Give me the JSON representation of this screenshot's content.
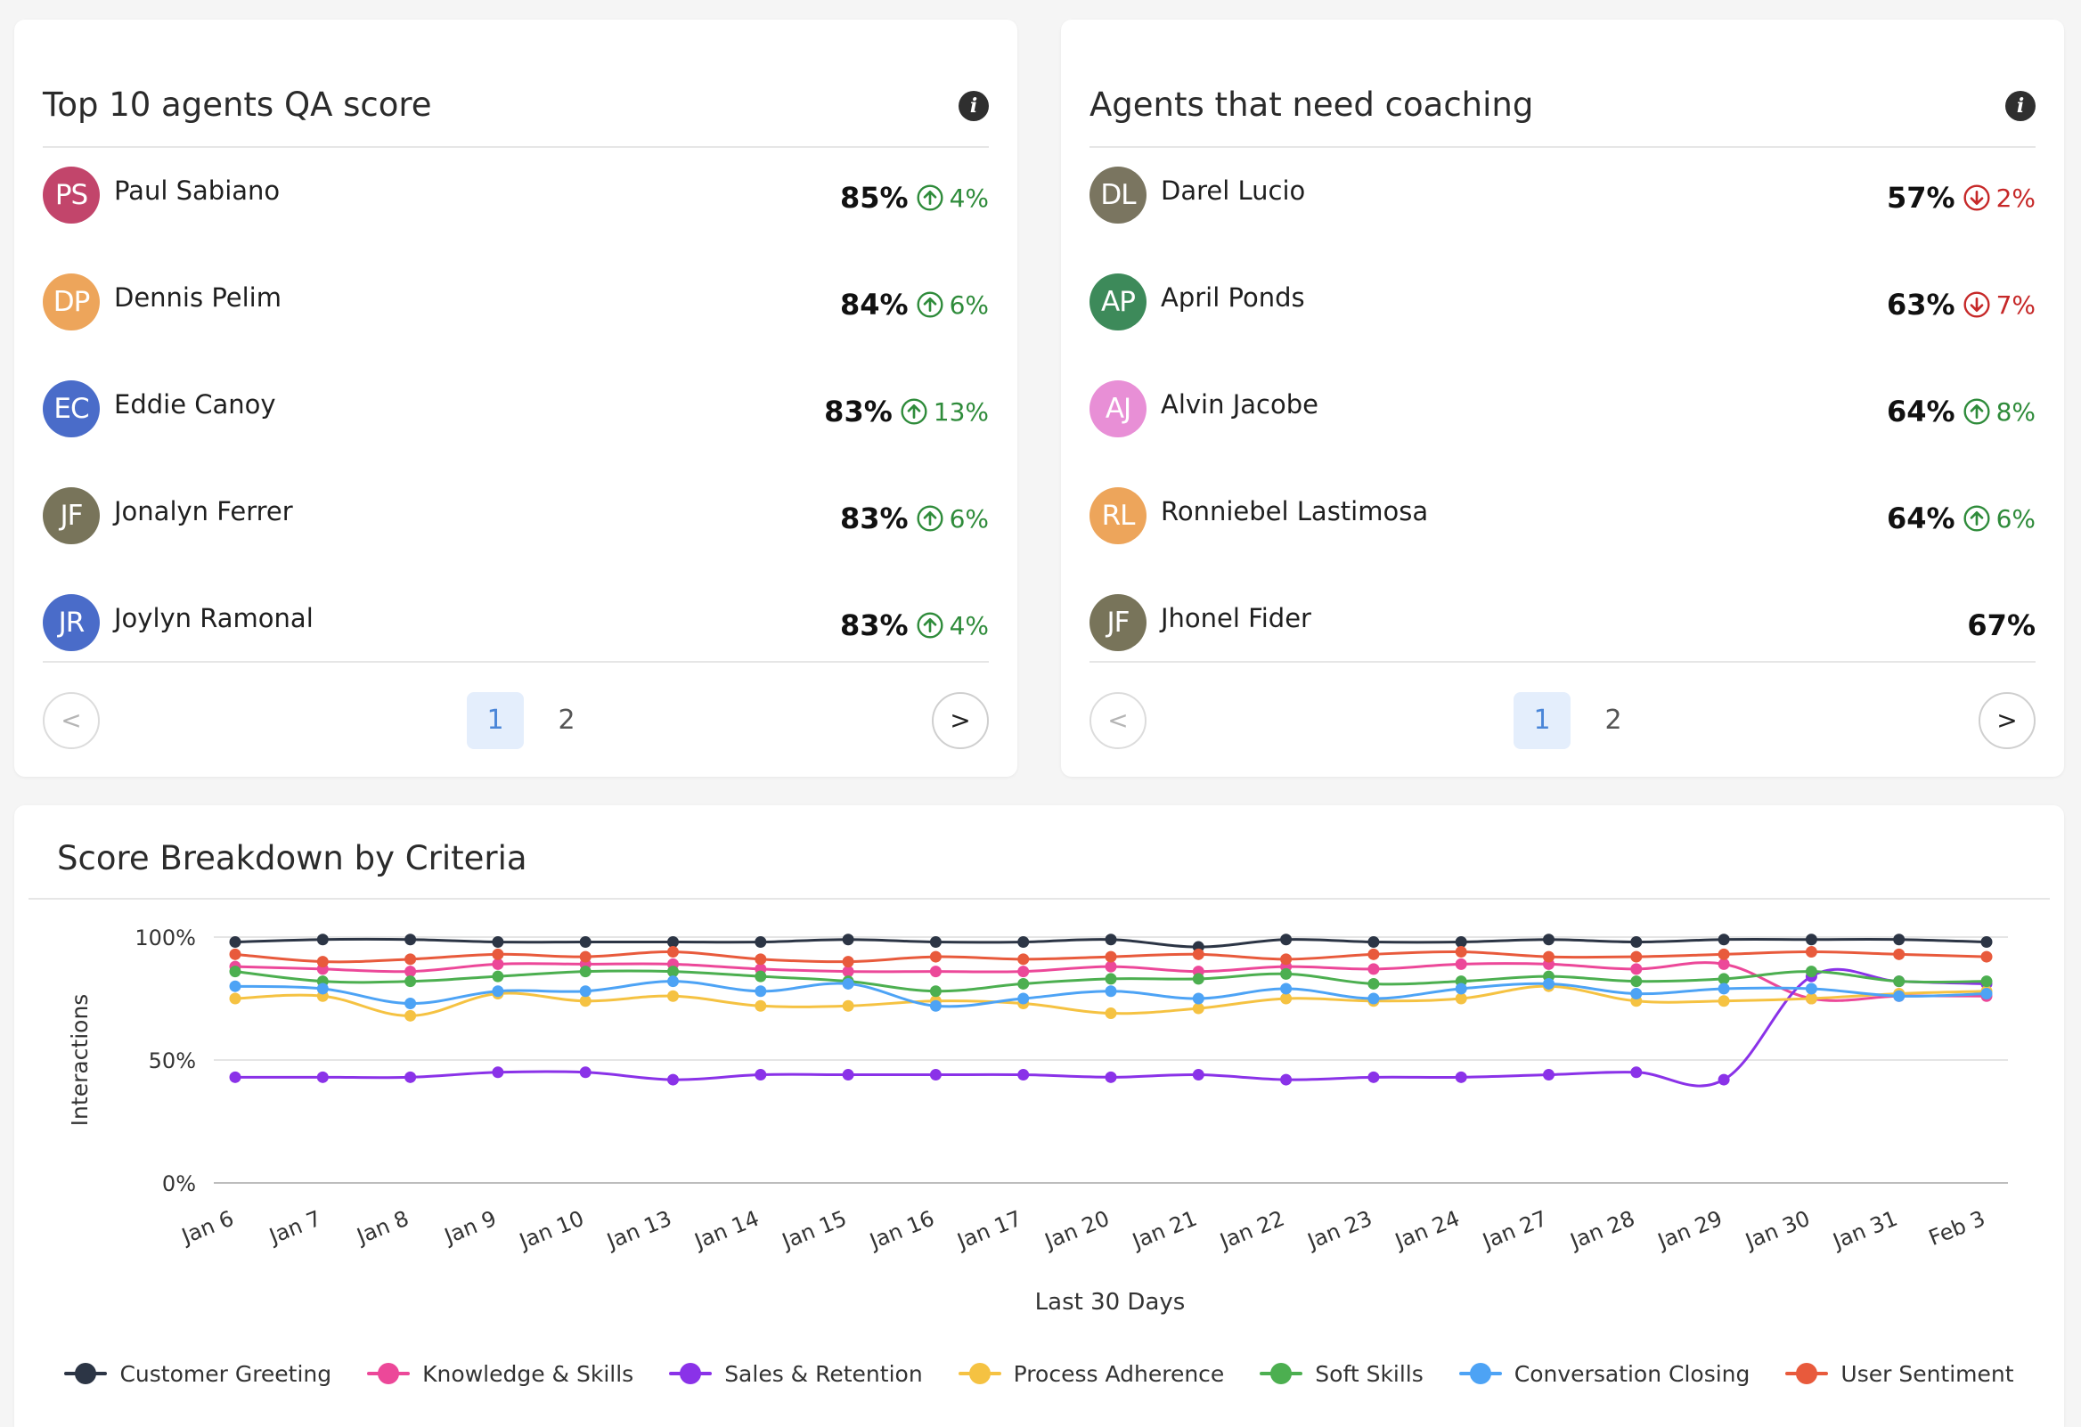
{
  "top_agents": {
    "title": "Top 10 agents QA score",
    "rows": [
      {
        "initials": "PS",
        "name": "Paul Sabiano",
        "score": "85%",
        "delta": "4%",
        "direction": "up",
        "avatar_color": "#c2456b"
      },
      {
        "initials": "DP",
        "name": "Dennis Pelim",
        "score": "84%",
        "delta": "6%",
        "direction": "up",
        "avatar_color": "#eda55b"
      },
      {
        "initials": "EC",
        "name": "Eddie Canoy",
        "score": "83%",
        "delta": "13%",
        "direction": "up",
        "avatar_color": "#4a6cc9"
      },
      {
        "initials": "JF",
        "name": "Jonalyn Ferrer",
        "score": "83%",
        "delta": "6%",
        "direction": "up",
        "avatar_color": "#78745a"
      },
      {
        "initials": "JR",
        "name": "Joylyn Ramonal",
        "score": "83%",
        "delta": "4%",
        "direction": "up",
        "avatar_color": "#4a6cc9"
      }
    ],
    "pagination": {
      "prev": "<",
      "next": ">",
      "pages": [
        "1",
        "2"
      ],
      "active": "1"
    }
  },
  "coaching": {
    "title": "Agents that need coaching",
    "rows": [
      {
        "initials": "DL",
        "name": "Darel Lucio",
        "score": "57%",
        "delta": "2%",
        "direction": "down",
        "avatar_color": "#7a7560"
      },
      {
        "initials": "AP",
        "name": "April Ponds",
        "score": "63%",
        "delta": "7%",
        "direction": "down",
        "avatar_color": "#3d8a5a"
      },
      {
        "initials": "AJ",
        "name": "Alvin Jacobe",
        "score": "64%",
        "delta": "8%",
        "direction": "up",
        "avatar_color": "#e88fd6"
      },
      {
        "initials": "RL",
        "name": "Ronniebel Lastimosa",
        "score": "64%",
        "delta": "6%",
        "direction": "up",
        "avatar_color": "#eda55b"
      },
      {
        "initials": "JF",
        "name": "Jhonel Fider",
        "score": "67%",
        "delta": "",
        "direction": "none",
        "avatar_color": "#78745a"
      }
    ],
    "pagination": {
      "prev": "<",
      "next": ">",
      "pages": [
        "1",
        "2"
      ],
      "active": "1"
    }
  },
  "breakdown": {
    "title": "Score Breakdown by Criteria"
  },
  "chart_data": {
    "type": "line",
    "title": "Score Breakdown by Criteria",
    "xlabel": "Last 30 Days",
    "ylabel": "Interactions",
    "ylim": [
      0,
      100
    ],
    "yticks": [
      "0%",
      "50%",
      "100%"
    ],
    "grid": true,
    "legend_position": "bottom",
    "categories": [
      "Jan 6",
      "Jan 7",
      "Jan 8",
      "Jan 9",
      "Jan 10",
      "Jan 13",
      "Jan 14",
      "Jan 15",
      "Jan 16",
      "Jan 17",
      "Jan 20",
      "Jan 21",
      "Jan 22",
      "Jan 23",
      "Jan 24",
      "Jan 27",
      "Jan 28",
      "Jan 29",
      "Jan 30",
      "Jan 31",
      "Feb 3"
    ],
    "series": [
      {
        "name": "Customer Greeting",
        "color": "#2c3545",
        "values": [
          98,
          99,
          99,
          98,
          98,
          98,
          98,
          99,
          98,
          98,
          99,
          96,
          99,
          98,
          98,
          99,
          98,
          99,
          99,
          99,
          98
        ]
      },
      {
        "name": "Knowledge & Skills",
        "color": "#ec4899",
        "values": [
          88,
          87,
          86,
          89,
          89,
          89,
          87,
          86,
          86,
          86,
          88,
          86,
          88,
          87,
          89,
          89,
          87,
          89,
          75,
          76,
          76
        ]
      },
      {
        "name": "Sales & Retention",
        "color": "#8a32e8",
        "values": [
          43,
          43,
          43,
          45,
          45,
          42,
          44,
          44,
          44,
          44,
          43,
          44,
          42,
          43,
          43,
          44,
          45,
          42,
          84,
          82,
          81
        ]
      },
      {
        "name": "Process Adherence",
        "color": "#f5c242",
        "values": [
          75,
          76,
          68,
          77,
          74,
          76,
          72,
          72,
          74,
          73,
          69,
          71,
          75,
          74,
          75,
          80,
          74,
          74,
          75,
          77,
          78
        ]
      },
      {
        "name": "Soft Skills",
        "color": "#4caf50",
        "values": [
          86,
          82,
          82,
          84,
          86,
          86,
          84,
          82,
          78,
          81,
          83,
          83,
          85,
          81,
          82,
          84,
          82,
          83,
          86,
          82,
          82
        ]
      },
      {
        "name": "Conversation Closing",
        "color": "#4da3f5",
        "values": [
          80,
          79,
          73,
          78,
          78,
          82,
          78,
          81,
          72,
          75,
          78,
          75,
          79,
          75,
          79,
          81,
          77,
          79,
          79,
          76,
          77
        ]
      },
      {
        "name": "User Sentiment",
        "color": "#e85a3c",
        "values": [
          93,
          90,
          91,
          93,
          92,
          94,
          91,
          90,
          92,
          91,
          92,
          93,
          91,
          93,
          94,
          92,
          92,
          93,
          94,
          93,
          92
        ]
      }
    ]
  }
}
